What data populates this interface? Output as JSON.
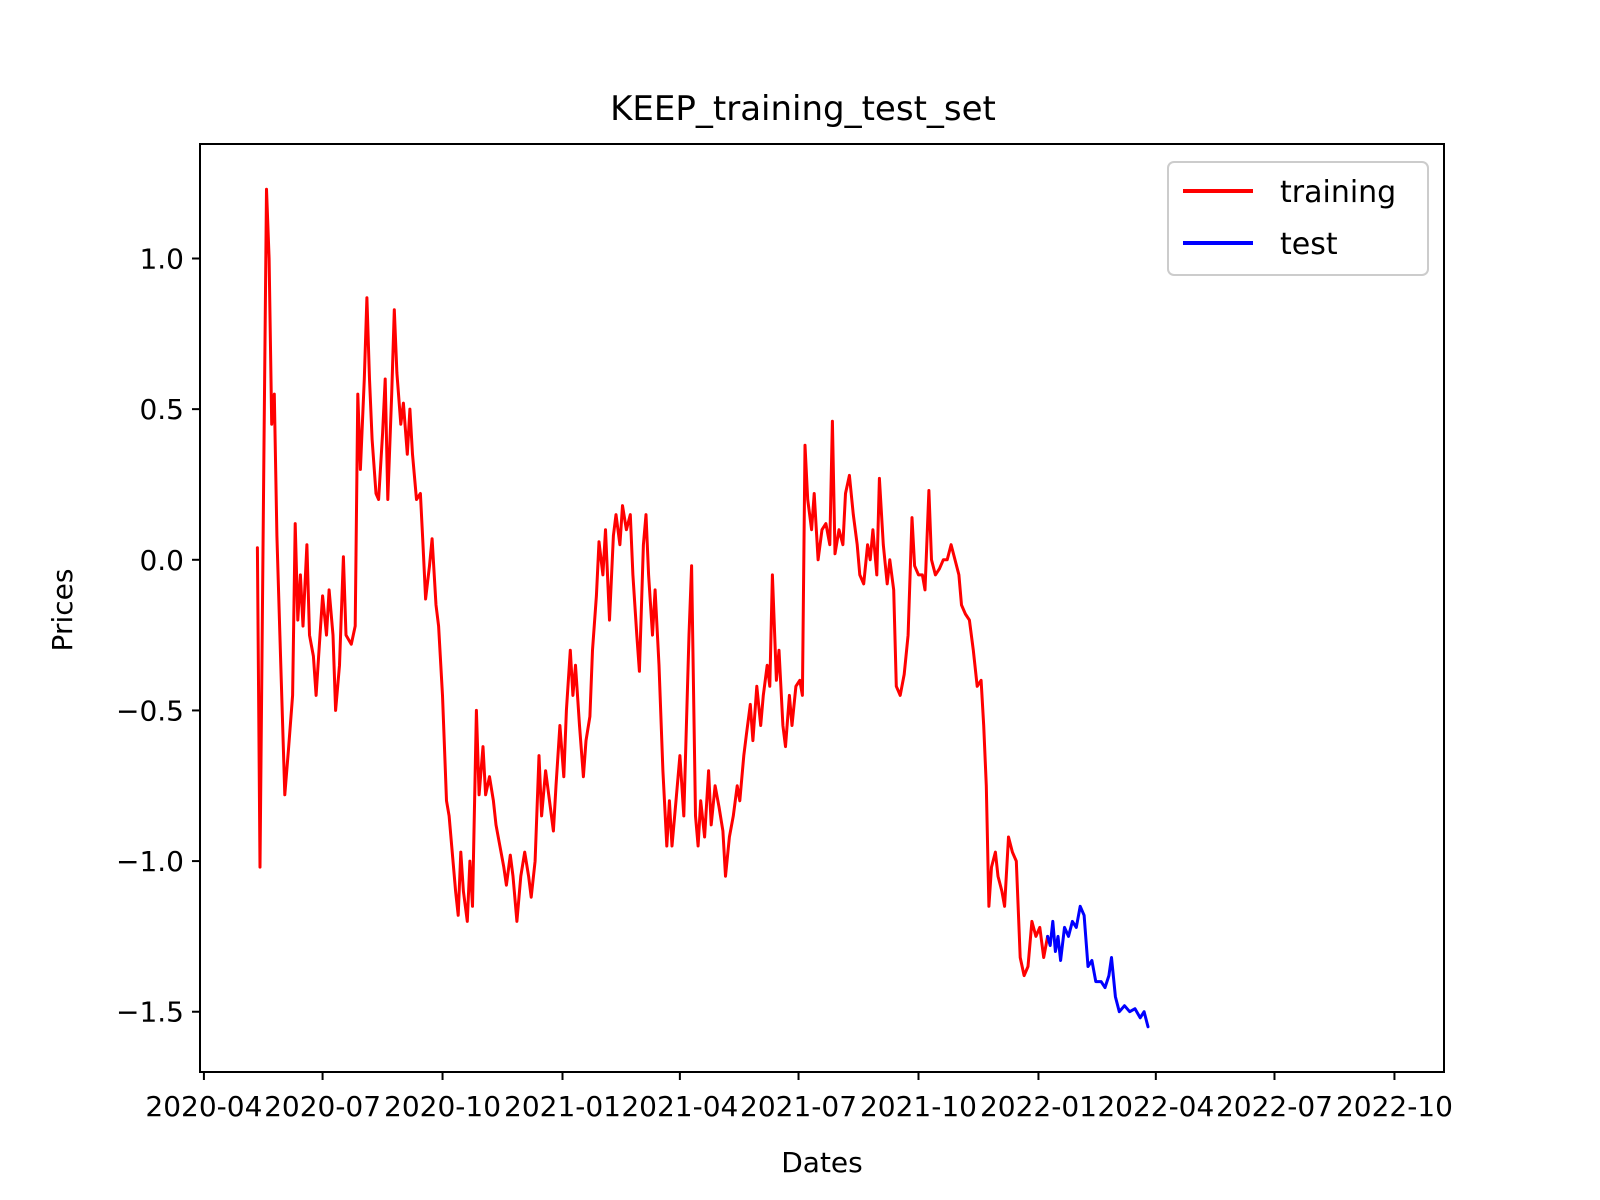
{
  "chart_data": {
    "type": "line",
    "title": "KEEP_training_test_set",
    "xlabel": "Dates",
    "ylabel": "Prices",
    "xlim": [
      "2020-03-29",
      "2022-11-08"
    ],
    "ylim": [
      -1.7,
      1.38
    ],
    "grid": false,
    "legend_position": "top-right",
    "x_ticks": [
      "2020-04",
      "2020-07",
      "2020-10",
      "2021-01",
      "2021-04",
      "2021-07",
      "2021-10",
      "2022-01",
      "2022-04",
      "2022-07",
      "2022-10"
    ],
    "x_tick_dates": [
      "2020-04-01",
      "2020-07-01",
      "2020-10-01",
      "2021-01-01",
      "2021-04-01",
      "2021-07-01",
      "2021-10-01",
      "2022-01-01",
      "2022-04-01",
      "2022-07-01",
      "2022-10-01"
    ],
    "y_ticks": [
      1.0,
      0.5,
      0.0,
      -0.5,
      -1.0,
      -1.5
    ],
    "y_tick_labels": [
      "1.0",
      "0.5",
      "0.0",
      "−0.5",
      "−1.0",
      "−1.5"
    ],
    "series": [
      {
        "name": "training",
        "color": "#ff0000",
        "points": [
          [
            "2020-05-12",
            0.04
          ],
          [
            "2020-05-14",
            -1.02
          ],
          [
            "2020-05-17",
            0.35
          ],
          [
            "2020-05-19",
            1.23
          ],
          [
            "2020-05-21",
            1.0
          ],
          [
            "2020-05-23",
            0.45
          ],
          [
            "2020-05-25",
            0.55
          ],
          [
            "2020-05-27",
            0.08
          ],
          [
            "2020-05-30",
            -0.35
          ],
          [
            "2020-06-02",
            -0.78
          ],
          [
            "2020-06-05",
            -0.62
          ],
          [
            "2020-06-08",
            -0.45
          ],
          [
            "2020-06-10",
            0.12
          ],
          [
            "2020-06-12",
            -0.2
          ],
          [
            "2020-06-14",
            -0.05
          ],
          [
            "2020-06-16",
            -0.22
          ],
          [
            "2020-06-19",
            0.05
          ],
          [
            "2020-06-21",
            -0.25
          ],
          [
            "2020-06-24",
            -0.32
          ],
          [
            "2020-06-26",
            -0.45
          ],
          [
            "2020-06-29",
            -0.25
          ],
          [
            "2020-07-01",
            -0.12
          ],
          [
            "2020-07-04",
            -0.25
          ],
          [
            "2020-07-06",
            -0.1
          ],
          [
            "2020-07-09",
            -0.25
          ],
          [
            "2020-07-11",
            -0.5
          ],
          [
            "2020-07-14",
            -0.35
          ],
          [
            "2020-07-17",
            0.01
          ],
          [
            "2020-07-19",
            -0.25
          ],
          [
            "2020-07-23",
            -0.28
          ],
          [
            "2020-07-26",
            -0.22
          ],
          [
            "2020-07-28",
            0.55
          ],
          [
            "2020-07-30",
            0.3
          ],
          [
            "2020-08-02",
            0.6
          ],
          [
            "2020-08-04",
            0.87
          ],
          [
            "2020-08-06",
            0.6
          ],
          [
            "2020-08-08",
            0.4
          ],
          [
            "2020-08-11",
            0.22
          ],
          [
            "2020-08-13",
            0.2
          ],
          [
            "2020-08-16",
            0.42
          ],
          [
            "2020-08-18",
            0.6
          ],
          [
            "2020-08-20",
            0.2
          ],
          [
            "2020-08-23",
            0.55
          ],
          [
            "2020-08-25",
            0.83
          ],
          [
            "2020-08-27",
            0.62
          ],
          [
            "2020-08-30",
            0.45
          ],
          [
            "2020-09-01",
            0.52
          ],
          [
            "2020-09-04",
            0.35
          ],
          [
            "2020-09-06",
            0.5
          ],
          [
            "2020-09-08",
            0.35
          ],
          [
            "2020-09-11",
            0.2
          ],
          [
            "2020-09-14",
            0.22
          ],
          [
            "2020-09-16",
            0.05
          ],
          [
            "2020-09-18",
            -0.13
          ],
          [
            "2020-09-21",
            -0.02
          ],
          [
            "2020-09-23",
            0.07
          ],
          [
            "2020-09-26",
            -0.15
          ],
          [
            "2020-09-28",
            -0.22
          ],
          [
            "2020-10-01",
            -0.45
          ],
          [
            "2020-10-04",
            -0.8
          ],
          [
            "2020-10-06",
            -0.85
          ],
          [
            "2020-10-08",
            -0.95
          ],
          [
            "2020-10-11",
            -1.1
          ],
          [
            "2020-10-13",
            -1.18
          ],
          [
            "2020-10-15",
            -0.97
          ],
          [
            "2020-10-17",
            -1.1
          ],
          [
            "2020-10-20",
            -1.2
          ],
          [
            "2020-10-22",
            -1.0
          ],
          [
            "2020-10-24",
            -1.15
          ],
          [
            "2020-10-27",
            -0.5
          ],
          [
            "2020-10-29",
            -0.78
          ],
          [
            "2020-11-01",
            -0.62
          ],
          [
            "2020-11-03",
            -0.78
          ],
          [
            "2020-11-06",
            -0.72
          ],
          [
            "2020-11-09",
            -0.8
          ],
          [
            "2020-11-11",
            -0.88
          ],
          [
            "2020-11-14",
            -0.95
          ],
          [
            "2020-11-17",
            -1.02
          ],
          [
            "2020-11-19",
            -1.08
          ],
          [
            "2020-11-22",
            -0.98
          ],
          [
            "2020-11-24",
            -1.05
          ],
          [
            "2020-11-27",
            -1.2
          ],
          [
            "2020-11-30",
            -1.05
          ],
          [
            "2020-12-03",
            -0.97
          ],
          [
            "2020-12-06",
            -1.05
          ],
          [
            "2020-12-08",
            -1.12
          ],
          [
            "2020-12-11",
            -1.0
          ],
          [
            "2020-12-14",
            -0.65
          ],
          [
            "2020-12-16",
            -0.85
          ],
          [
            "2020-12-19",
            -0.7
          ],
          [
            "2020-12-22",
            -0.8
          ],
          [
            "2020-12-25",
            -0.9
          ],
          [
            "2020-12-27",
            -0.75
          ],
          [
            "2020-12-30",
            -0.55
          ],
          [
            "2021-01-02",
            -0.72
          ],
          [
            "2021-01-04",
            -0.5
          ],
          [
            "2021-01-07",
            -0.3
          ],
          [
            "2021-01-09",
            -0.45
          ],
          [
            "2021-01-11",
            -0.35
          ],
          [
            "2021-01-14",
            -0.55
          ],
          [
            "2021-01-17",
            -0.72
          ],
          [
            "2021-01-19",
            -0.6
          ],
          [
            "2021-01-22",
            -0.52
          ],
          [
            "2021-01-24",
            -0.3
          ],
          [
            "2021-01-27",
            -0.12
          ],
          [
            "2021-01-29",
            0.06
          ],
          [
            "2021-02-01",
            -0.05
          ],
          [
            "2021-02-03",
            0.1
          ],
          [
            "2021-02-06",
            -0.2
          ],
          [
            "2021-02-09",
            0.08
          ],
          [
            "2021-02-11",
            0.15
          ],
          [
            "2021-02-14",
            0.05
          ],
          [
            "2021-02-16",
            0.18
          ],
          [
            "2021-02-19",
            0.1
          ],
          [
            "2021-02-22",
            0.15
          ],
          [
            "2021-02-24",
            -0.05
          ],
          [
            "2021-02-27",
            -0.25
          ],
          [
            "2021-03-01",
            -0.37
          ],
          [
            "2021-03-04",
            0.05
          ],
          [
            "2021-03-06",
            0.15
          ],
          [
            "2021-03-08",
            -0.05
          ],
          [
            "2021-03-11",
            -0.25
          ],
          [
            "2021-03-13",
            -0.1
          ],
          [
            "2021-03-16",
            -0.35
          ],
          [
            "2021-03-19",
            -0.7
          ],
          [
            "2021-03-22",
            -0.95
          ],
          [
            "2021-03-24",
            -0.8
          ],
          [
            "2021-03-26",
            -0.95
          ],
          [
            "2021-03-29",
            -0.8
          ],
          [
            "2021-04-01",
            -0.65
          ],
          [
            "2021-04-04",
            -0.85
          ],
          [
            "2021-04-06",
            -0.55
          ],
          [
            "2021-04-08",
            -0.25
          ],
          [
            "2021-04-10",
            -0.02
          ],
          [
            "2021-04-13",
            -0.85
          ],
          [
            "2021-04-15",
            -0.95
          ],
          [
            "2021-04-17",
            -0.8
          ],
          [
            "2021-04-20",
            -0.92
          ],
          [
            "2021-04-23",
            -0.7
          ],
          [
            "2021-04-25",
            -0.88
          ],
          [
            "2021-04-28",
            -0.75
          ],
          [
            "2021-05-01",
            -0.82
          ],
          [
            "2021-05-04",
            -0.9
          ],
          [
            "2021-05-06",
            -1.05
          ],
          [
            "2021-05-09",
            -0.92
          ],
          [
            "2021-05-12",
            -0.85
          ],
          [
            "2021-05-15",
            -0.75
          ],
          [
            "2021-05-17",
            -0.8
          ],
          [
            "2021-05-20",
            -0.65
          ],
          [
            "2021-05-22",
            -0.58
          ],
          [
            "2021-05-25",
            -0.48
          ],
          [
            "2021-05-27",
            -0.6
          ],
          [
            "2021-05-30",
            -0.42
          ],
          [
            "2021-06-02",
            -0.55
          ],
          [
            "2021-06-04",
            -0.45
          ],
          [
            "2021-06-07",
            -0.35
          ],
          [
            "2021-06-09",
            -0.42
          ],
          [
            "2021-06-11",
            -0.05
          ],
          [
            "2021-06-14",
            -0.4
          ],
          [
            "2021-06-16",
            -0.3
          ],
          [
            "2021-06-19",
            -0.55
          ],
          [
            "2021-06-21",
            -0.62
          ],
          [
            "2021-06-24",
            -0.45
          ],
          [
            "2021-06-26",
            -0.55
          ],
          [
            "2021-06-29",
            -0.42
          ],
          [
            "2021-07-02",
            -0.4
          ],
          [
            "2021-07-04",
            -0.45
          ],
          [
            "2021-07-06",
            0.38
          ],
          [
            "2021-07-08",
            0.2
          ],
          [
            "2021-07-11",
            0.1
          ],
          [
            "2021-07-13",
            0.22
          ],
          [
            "2021-07-16",
            0.0
          ],
          [
            "2021-07-19",
            0.1
          ],
          [
            "2021-07-22",
            0.12
          ],
          [
            "2021-07-25",
            0.05
          ],
          [
            "2021-07-27",
            0.46
          ],
          [
            "2021-07-29",
            0.02
          ],
          [
            "2021-08-01",
            0.1
          ],
          [
            "2021-08-04",
            0.05
          ],
          [
            "2021-08-06",
            0.22
          ],
          [
            "2021-08-09",
            0.28
          ],
          [
            "2021-08-12",
            0.15
          ],
          [
            "2021-08-15",
            0.05
          ],
          [
            "2021-08-17",
            -0.05
          ],
          [
            "2021-08-20",
            -0.08
          ],
          [
            "2021-08-23",
            0.05
          ],
          [
            "2021-08-25",
            0.0
          ],
          [
            "2021-08-27",
            0.1
          ],
          [
            "2021-08-30",
            -0.05
          ],
          [
            "2021-09-01",
            0.27
          ],
          [
            "2021-09-04",
            0.05
          ],
          [
            "2021-09-07",
            -0.08
          ],
          [
            "2021-09-09",
            0.0
          ],
          [
            "2021-09-12",
            -0.1
          ],
          [
            "2021-09-14",
            -0.42
          ],
          [
            "2021-09-17",
            -0.45
          ],
          [
            "2021-09-20",
            -0.38
          ],
          [
            "2021-09-23",
            -0.25
          ],
          [
            "2021-09-26",
            0.14
          ],
          [
            "2021-09-28",
            -0.02
          ],
          [
            "2021-10-01",
            -0.05
          ],
          [
            "2021-10-04",
            -0.05
          ],
          [
            "2021-10-06",
            -0.1
          ],
          [
            "2021-10-09",
            0.23
          ],
          [
            "2021-10-11",
            0.0
          ],
          [
            "2021-10-14",
            -0.05
          ],
          [
            "2021-10-17",
            -0.03
          ],
          [
            "2021-10-20",
            0.0
          ],
          [
            "2021-10-23",
            0.0
          ],
          [
            "2021-10-26",
            0.05
          ],
          [
            "2021-10-29",
            0.0
          ],
          [
            "2021-11-01",
            -0.05
          ],
          [
            "2021-11-03",
            -0.15
          ],
          [
            "2021-11-06",
            -0.18
          ],
          [
            "2021-11-09",
            -0.2
          ],
          [
            "2021-11-12",
            -0.3
          ],
          [
            "2021-11-15",
            -0.42
          ],
          [
            "2021-11-18",
            -0.4
          ],
          [
            "2021-11-20",
            -0.55
          ],
          [
            "2021-11-22",
            -0.75
          ],
          [
            "2021-11-24",
            -1.15
          ],
          [
            "2021-11-26",
            -1.02
          ],
          [
            "2021-11-29",
            -0.97
          ],
          [
            "2021-12-01",
            -1.05
          ],
          [
            "2021-12-04",
            -1.1
          ],
          [
            "2021-12-06",
            -1.15
          ],
          [
            "2021-12-09",
            -0.92
          ],
          [
            "2021-12-12",
            -0.97
          ],
          [
            "2021-12-15",
            -1.0
          ],
          [
            "2021-12-18",
            -1.32
          ],
          [
            "2021-12-21",
            -1.38
          ],
          [
            "2021-12-24",
            -1.35
          ],
          [
            "2021-12-27",
            -1.2
          ],
          [
            "2021-12-30",
            -1.25
          ],
          [
            "2022-01-02",
            -1.22
          ],
          [
            "2022-01-05",
            -1.32
          ],
          [
            "2022-01-08",
            -1.25
          ]
        ]
      },
      {
        "name": "test",
        "color": "#0000ff",
        "points": [
          [
            "2022-01-08",
            -1.25
          ],
          [
            "2022-01-10",
            -1.28
          ],
          [
            "2022-01-12",
            -1.2
          ],
          [
            "2022-01-14",
            -1.3
          ],
          [
            "2022-01-16",
            -1.25
          ],
          [
            "2022-01-18",
            -1.33
          ],
          [
            "2022-01-21",
            -1.22
          ],
          [
            "2022-01-24",
            -1.25
          ],
          [
            "2022-01-27",
            -1.2
          ],
          [
            "2022-01-30",
            -1.22
          ],
          [
            "2022-02-02",
            -1.15
          ],
          [
            "2022-02-05",
            -1.18
          ],
          [
            "2022-02-08",
            -1.35
          ],
          [
            "2022-02-11",
            -1.33
          ],
          [
            "2022-02-14",
            -1.4
          ],
          [
            "2022-02-18",
            -1.4
          ],
          [
            "2022-02-21",
            -1.42
          ],
          [
            "2022-02-24",
            -1.38
          ],
          [
            "2022-02-26",
            -1.32
          ],
          [
            "2022-03-01",
            -1.45
          ],
          [
            "2022-03-04",
            -1.5
          ],
          [
            "2022-03-08",
            -1.48
          ],
          [
            "2022-03-12",
            -1.5
          ],
          [
            "2022-03-16",
            -1.49
          ],
          [
            "2022-03-20",
            -1.52
          ],
          [
            "2022-03-23",
            -1.5
          ],
          [
            "2022-03-26",
            -1.55
          ]
        ]
      }
    ]
  }
}
